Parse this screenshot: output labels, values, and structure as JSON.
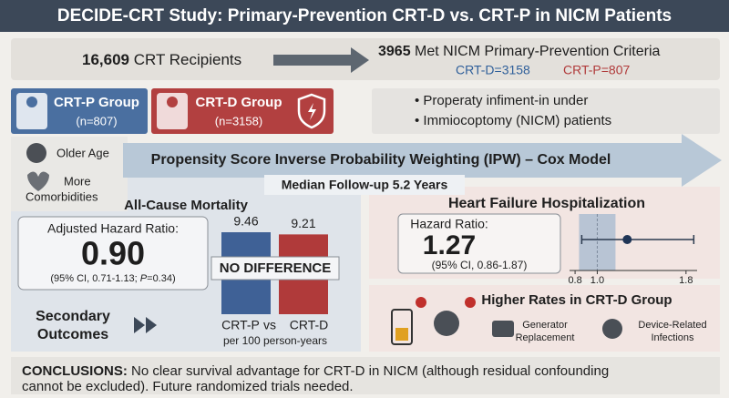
{
  "header": {
    "title": "DECIDE-CRT Study: Primary-Prevention CRT-D vs. CRT-P in NICM Patients"
  },
  "flow": {
    "recipients_count": "16,609",
    "recipients_label": " CRT Recipients",
    "met_count": "3965",
    "met_label": " Met NICM Primary-Prevention Criteria",
    "crt_d": "CRT-D=3158",
    "crt_p": "CRT-P=807"
  },
  "groups": [
    {
      "name": "CRT-P Group",
      "n": "(n=807)"
    },
    {
      "name": "CRT-D Group",
      "n": "(n=3158)"
    }
  ],
  "bullets": [
    "Properaty infiment-in under",
    "Immiocoptomy (NICM) patients"
  ],
  "characteristics": {
    "older": "Older Age",
    "comorbidities": [
      "More",
      "Comorbidities"
    ]
  },
  "method": "Propensity Score Inverse Probability Weighting (IPW) – Cox Model",
  "follow_up": "Median Follow-up 5.2 Years",
  "mortality": {
    "title": "All-Cause Mortality",
    "hr_label": "Adjusted Hazard Ratio:",
    "hr": "0.90",
    "ci_prefix": "(95% CI, 0.71-1.13; ",
    "p_symbol": "P",
    "p_value": "=0.34)",
    "chart": {
      "type": "bar",
      "categories": [
        "CRT-P",
        "CRT-D"
      ],
      "values": [
        9.46,
        9.21
      ],
      "colors": [
        "#3f6196",
        "#b03a3a"
      ],
      "comparison": "vs",
      "unit": "per 100 person-years",
      "annotation": "NO DIFFERENCE"
    }
  },
  "secondary": [
    "Secondary",
    "Outcomes"
  ],
  "heart_failure": {
    "title": "Heart Failure Hospitalization",
    "hr_label": "Hazard Ratio:",
    "hr": 1.27,
    "ci_label": "(95% CI, 0.86-1.87)",
    "ci": [
      0.86,
      1.87
    ],
    "xlim": [
      0.75,
      1.9
    ],
    "xticks": [
      0.8,
      {
        "value": 1,
        "label": "1.0"
      },
      1.8
    ]
  },
  "device": {
    "title": "Higher Rates in CRT-D Group",
    "items": [
      [
        "Generator",
        "Replacement"
      ],
      [
        "Device-Related",
        "Infections"
      ]
    ]
  },
  "conclusions": {
    "label": "CONCLUSIONS:",
    "lines": [
      " No clear survival advantage for CRT-D in NICM (although residual confounding",
      "cannot be excluded). Future randomized trials needed."
    ]
  }
}
